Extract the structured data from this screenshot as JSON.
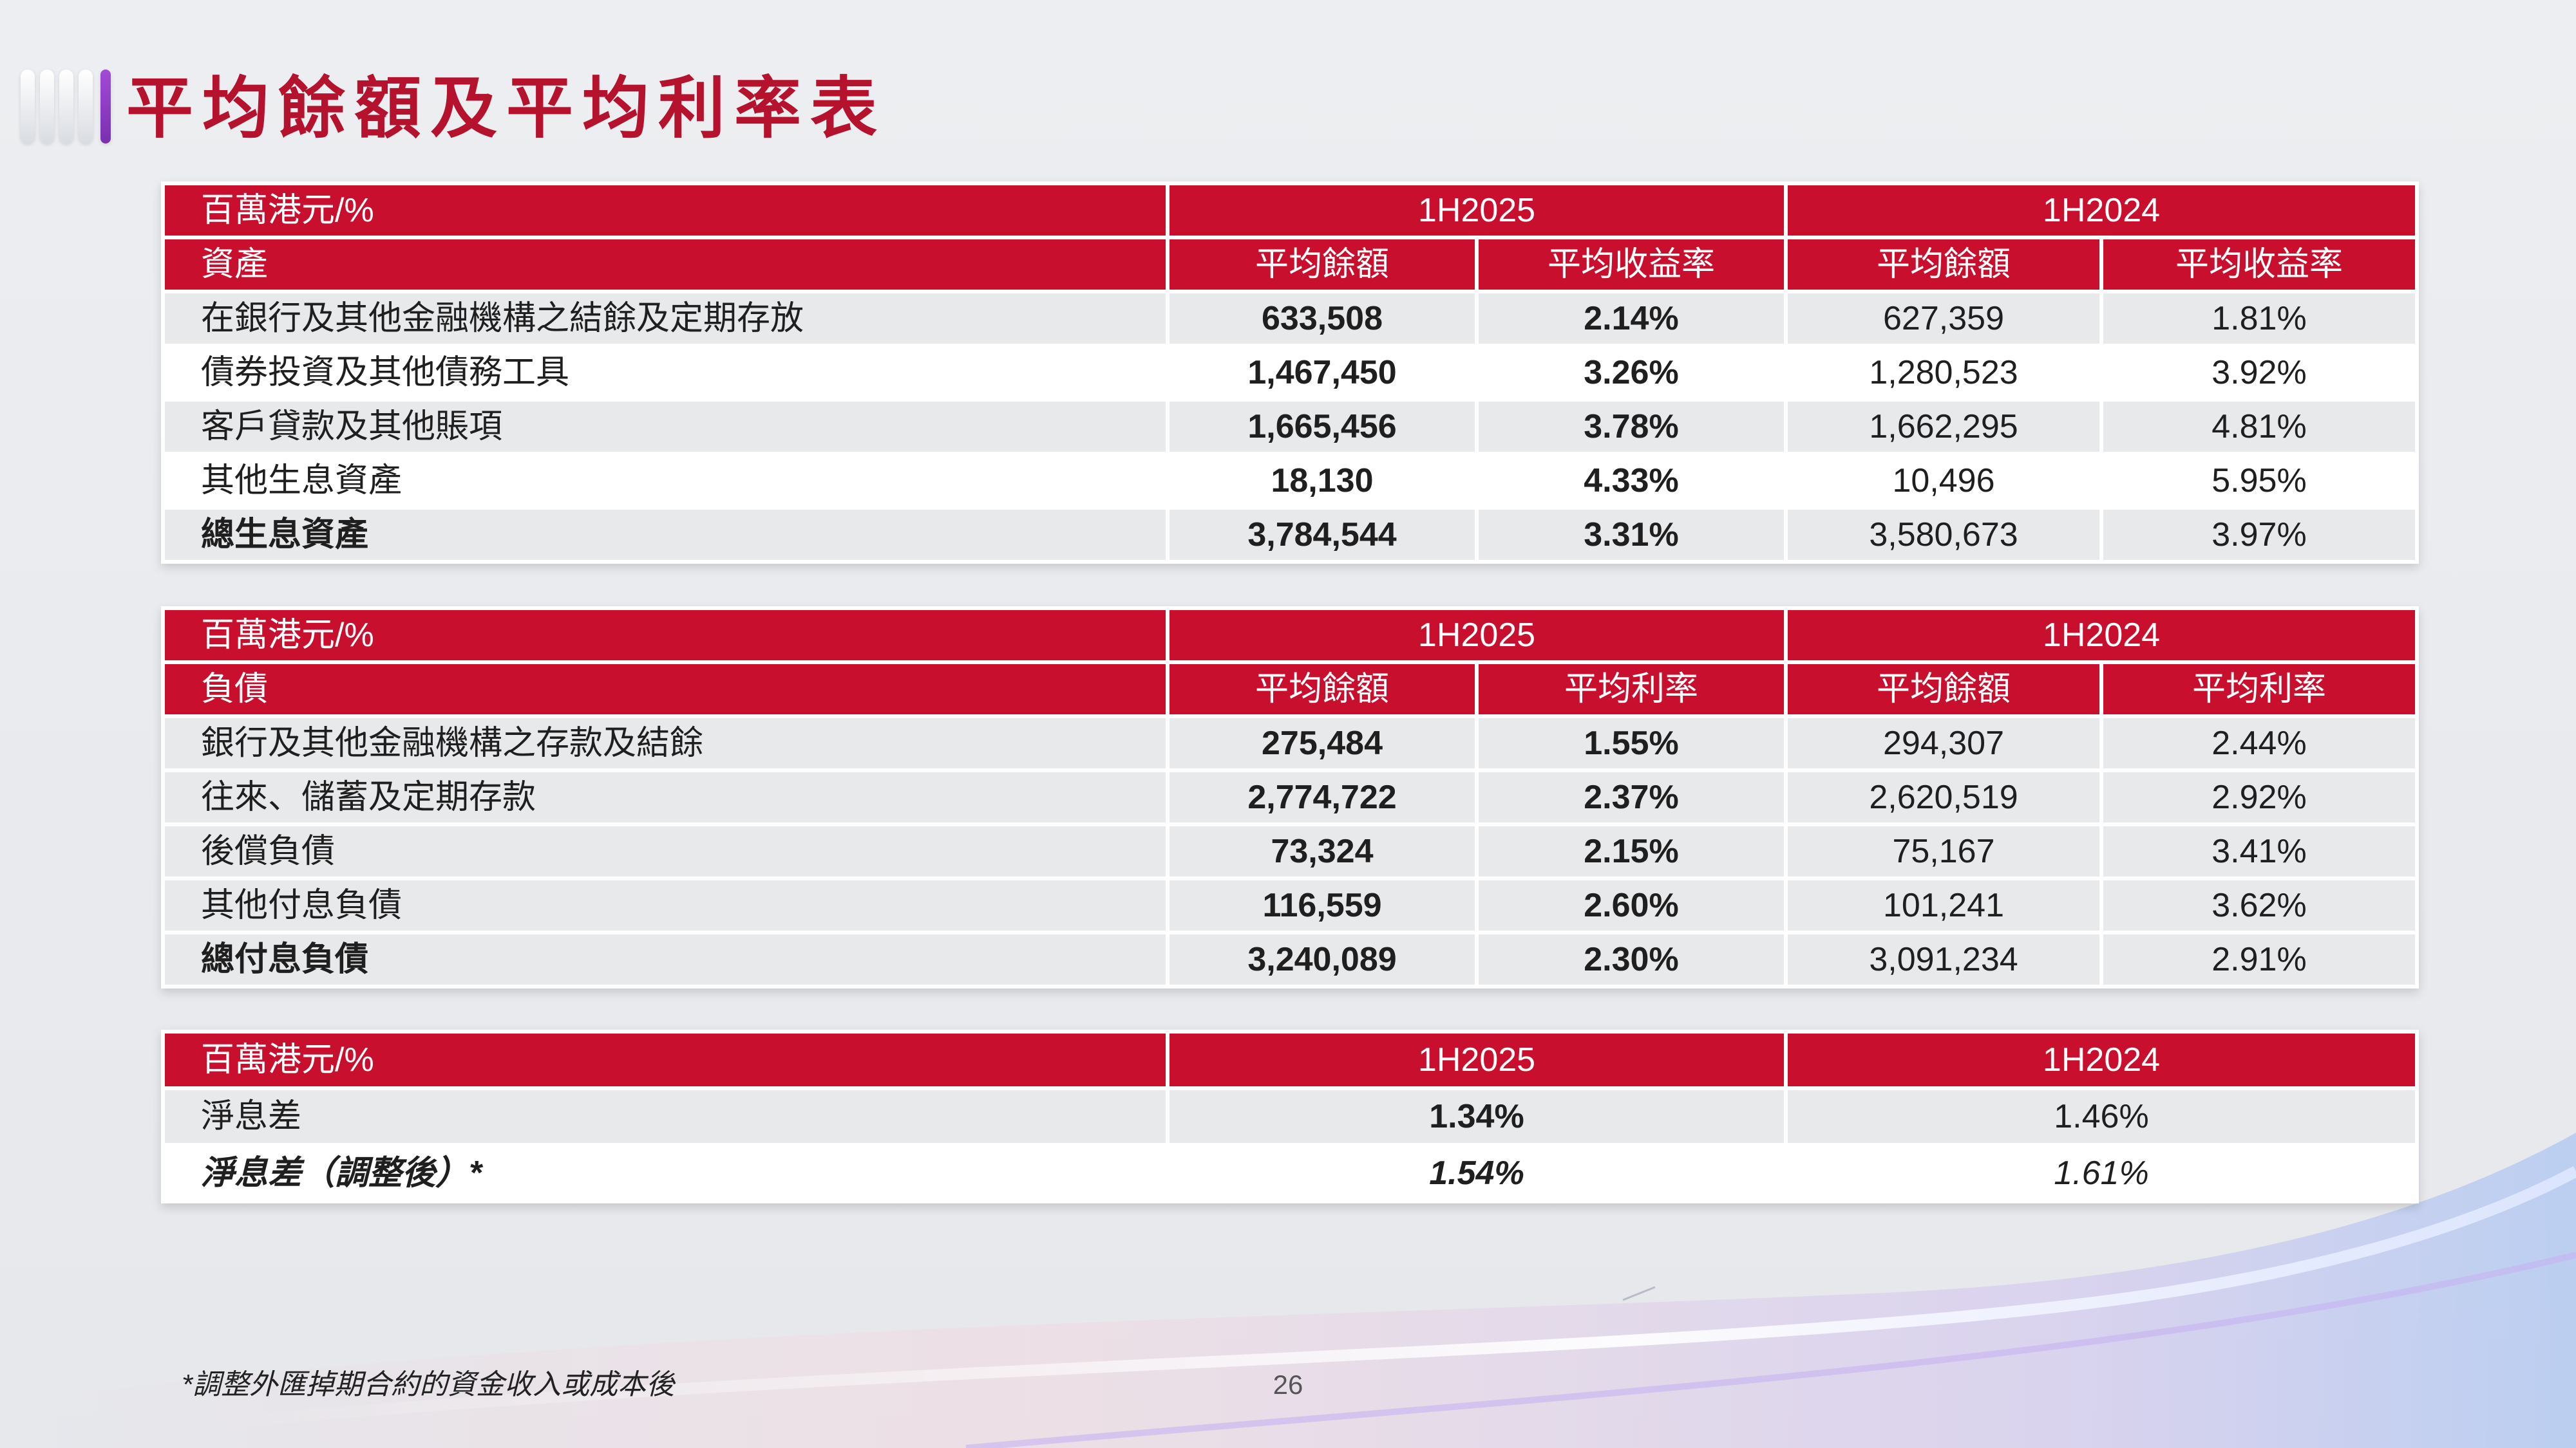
{
  "title": "平均餘額及平均利率表",
  "assets_table": {
    "unit_label": "百萬港元/%",
    "period1": "1H2025",
    "period2": "1H2024",
    "section_label": "資產",
    "col_balance": "平均餘額",
    "col_rate": "平均收益率",
    "rows": [
      {
        "label": "在銀行及其他金融機構之結餘及定期存放",
        "bal1": "633,508",
        "rate1": "2.14%",
        "bal2": "627,359",
        "rate2": "1.81%"
      },
      {
        "label": "債券投資及其他債務工具",
        "bal1": "1,467,450",
        "rate1": "3.26%",
        "bal2": "1,280,523",
        "rate2": "3.92%"
      },
      {
        "label": "客戶貸款及其他賬項",
        "bal1": "1,665,456",
        "rate1": "3.78%",
        "bal2": "1,662,295",
        "rate2": "4.81%"
      },
      {
        "label": "其他生息資產",
        "bal1": "18,130",
        "rate1": "4.33%",
        "bal2": "10,496",
        "rate2": "5.95%"
      },
      {
        "label": "總生息資產",
        "bal1": "3,784,544",
        "rate1": "3.31%",
        "bal2": "3,580,673",
        "rate2": "3.97%"
      }
    ]
  },
  "liabilities_table": {
    "unit_label": "百萬港元/%",
    "period1": "1H2025",
    "period2": "1H2024",
    "section_label": "負債",
    "col_balance": "平均餘額",
    "col_rate": "平均利率",
    "rows": [
      {
        "label": "銀行及其他金融機構之存款及結餘",
        "bal1": "275,484",
        "rate1": "1.55%",
        "bal2": "294,307",
        "rate2": "2.44%"
      },
      {
        "label": "往來、儲蓄及定期存款",
        "bal1": "2,774,722",
        "rate1": "2.37%",
        "bal2": "2,620,519",
        "rate2": "2.92%"
      },
      {
        "label": "後償負債",
        "bal1": "73,324",
        "rate1": "2.15%",
        "bal2": "75,167",
        "rate2": "3.41%"
      },
      {
        "label": "其他付息負債",
        "bal1": "116,559",
        "rate1": "2.60%",
        "bal2": "101,241",
        "rate2": "3.62%"
      },
      {
        "label": "總付息負債",
        "bal1": "3,240,089",
        "rate1": "2.30%",
        "bal2": "3,091,234",
        "rate2": "2.91%"
      }
    ]
  },
  "nim_table": {
    "unit_label": "百萬港元/%",
    "period1": "1H2025",
    "period2": "1H2024",
    "rows": [
      {
        "label": "淨息差",
        "v1": "1.34%",
        "v2": "1.46%"
      },
      {
        "label": "淨息差（調整後）*",
        "v1": "1.54%",
        "v2": "1.61%"
      }
    ]
  },
  "footnote": "*調整外匯掉期合約的資金收入或成本後",
  "page_number": "26",
  "colors": {
    "brand_red": "#c8102e",
    "title_red": "#b5122e",
    "accent_purple": "#8a3cc4",
    "row_gray": "#e8e9eb"
  }
}
